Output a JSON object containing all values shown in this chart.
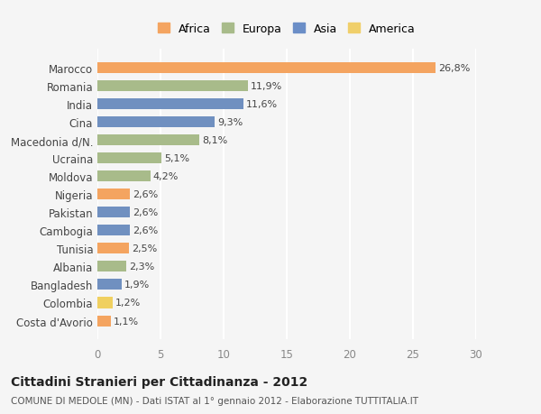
{
  "categories": [
    "Costa d'Avorio",
    "Colombia",
    "Bangladesh",
    "Albania",
    "Tunisia",
    "Cambogia",
    "Pakistan",
    "Nigeria",
    "Moldova",
    "Ucraina",
    "Macedonia d/N.",
    "Cina",
    "India",
    "Romania",
    "Marocco"
  ],
  "values": [
    1.1,
    1.2,
    1.9,
    2.3,
    2.5,
    2.6,
    2.6,
    2.6,
    4.2,
    5.1,
    8.1,
    9.3,
    11.6,
    11.9,
    26.8
  ],
  "labels": [
    "1,1%",
    "1,2%",
    "1,9%",
    "2,3%",
    "2,5%",
    "2,6%",
    "2,6%",
    "2,6%",
    "4,2%",
    "5,1%",
    "8,1%",
    "9,3%",
    "11,6%",
    "11,9%",
    "26,8%"
  ],
  "bar_colors": [
    "#F4A460",
    "#F0D060",
    "#7090C0",
    "#A8BB8A",
    "#F4A460",
    "#7090C0",
    "#7090C0",
    "#F4A460",
    "#A8BB8A",
    "#A8BB8A",
    "#A8BB8A",
    "#7090C0",
    "#7090C0",
    "#A8BB8A",
    "#F4A460"
  ],
  "legend_colors": {
    "Africa": "#F4A460",
    "Europa": "#A8BB8A",
    "Asia": "#6B8EC7",
    "America": "#F0CF6A"
  },
  "xlim": [
    0,
    30
  ],
  "xticks": [
    0,
    5,
    10,
    15,
    20,
    25,
    30
  ],
  "title": "Cittadini Stranieri per Cittadinanza - 2012",
  "subtitle": "COMUNE DI MEDOLE (MN) - Dati ISTAT al 1° gennaio 2012 - Elaborazione TUTTITALIA.IT",
  "bg_color": "#F5F5F5",
  "grid_color": "#FFFFFF",
  "legend_order": [
    "Africa",
    "Europa",
    "Asia",
    "America"
  ]
}
